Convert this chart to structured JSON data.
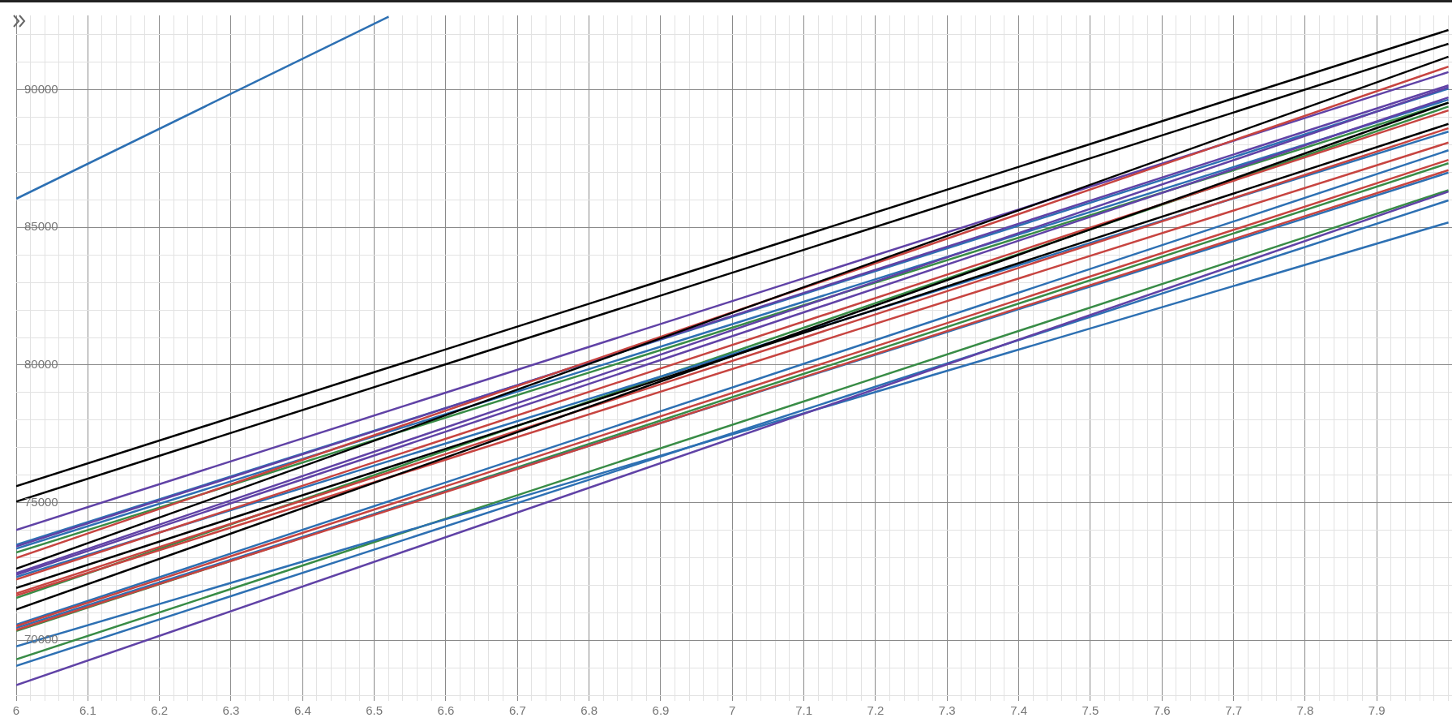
{
  "chart_data": {
    "type": "line",
    "xlim": [
      6,
      8.005
    ],
    "ylim": [
      67800,
      92700
    ],
    "grid": true,
    "legend": false,
    "xticks": [
      6,
      {
        "value": 6.02,
        "label": null
      },
      {
        "value": 6.04,
        "label": null
      },
      {
        "value": 6.06,
        "label": null
      },
      {
        "value": 6.08,
        "label": null
      },
      6.1,
      {
        "value": 6.12,
        "label": null
      },
      {
        "value": 6.14,
        "label": null
      },
      {
        "value": 6.16,
        "label": null
      },
      {
        "value": 6.18,
        "label": null
      },
      6.2,
      {
        "value": 6.22,
        "label": null
      },
      {
        "value": 6.24,
        "label": null
      },
      {
        "value": 6.26,
        "label": null
      },
      {
        "value": 6.28,
        "label": null
      },
      6.3,
      {
        "value": 6.32,
        "label": null
      },
      {
        "value": 6.34,
        "label": null
      },
      {
        "value": 6.36,
        "label": null
      },
      {
        "value": 6.38,
        "label": null
      },
      6.4,
      {
        "value": 6.42,
        "label": null
      },
      {
        "value": 6.44,
        "label": null
      },
      {
        "value": 6.46,
        "label": null
      },
      {
        "value": 6.48,
        "label": null
      },
      6.5,
      {
        "value": 6.52,
        "label": null
      },
      {
        "value": 6.54,
        "label": null
      },
      {
        "value": 6.56,
        "label": null
      },
      {
        "value": 6.58,
        "label": null
      },
      6.6,
      {
        "value": 6.62,
        "label": null
      },
      {
        "value": 6.64,
        "label": null
      },
      {
        "value": 6.66,
        "label": null
      },
      {
        "value": 6.68,
        "label": null
      },
      6.7,
      {
        "value": 6.72,
        "label": null
      },
      {
        "value": 6.74,
        "label": null
      },
      {
        "value": 6.76,
        "label": null
      },
      {
        "value": 6.78,
        "label": null
      },
      6.8,
      {
        "value": 6.82,
        "label": null
      },
      {
        "value": 6.84,
        "label": null
      },
      {
        "value": 6.86,
        "label": null
      },
      {
        "value": 6.88,
        "label": null
      },
      6.9,
      {
        "value": 6.92,
        "label": null
      },
      {
        "value": 6.94,
        "label": null
      },
      {
        "value": 6.96,
        "label": null
      },
      {
        "value": 6.98,
        "label": null
      },
      7,
      {
        "value": 7.02,
        "label": null
      },
      {
        "value": 7.04,
        "label": null
      },
      {
        "value": 7.06,
        "label": null
      },
      {
        "value": 7.08,
        "label": null
      },
      7.1,
      {
        "value": 7.12,
        "label": null
      },
      {
        "value": 7.14,
        "label": null
      },
      {
        "value": 7.16,
        "label": null
      },
      {
        "value": 7.18,
        "label": null
      },
      7.2,
      {
        "value": 7.22,
        "label": null
      },
      {
        "value": 7.24,
        "label": null
      },
      {
        "value": 7.26,
        "label": null
      },
      {
        "value": 7.28,
        "label": null
      },
      7.3,
      {
        "value": 7.32,
        "label": null
      },
      {
        "value": 7.34,
        "label": null
      },
      {
        "value": 7.36,
        "label": null
      },
      {
        "value": 7.38,
        "label": null
      },
      7.4,
      {
        "value": 7.42,
        "label": null
      },
      {
        "value": 7.44,
        "label": null
      },
      {
        "value": 7.46,
        "label": null
      },
      {
        "value": 7.48,
        "label": null
      },
      7.5,
      {
        "value": 7.52,
        "label": null
      },
      {
        "value": 7.54,
        "label": null
      },
      {
        "value": 7.56,
        "label": null
      },
      {
        "value": 7.58,
        "label": null
      },
      7.6,
      {
        "value": 7.62,
        "label": null
      },
      {
        "value": 7.64,
        "label": null
      },
      {
        "value": 7.66,
        "label": null
      },
      {
        "value": 7.68,
        "label": null
      },
      7.7,
      {
        "value": 7.72,
        "label": null
      },
      {
        "value": 7.74,
        "label": null
      },
      {
        "value": 7.76,
        "label": null
      },
      {
        "value": 7.78,
        "label": null
      },
      7.8,
      {
        "value": 7.82,
        "label": null
      },
      {
        "value": 7.84,
        "label": null
      },
      {
        "value": 7.86,
        "label": null
      },
      {
        "value": 7.88,
        "label": null
      },
      7.9,
      {
        "value": 7.92,
        "label": null
      },
      {
        "value": 7.94,
        "label": null
      },
      {
        "value": 7.96,
        "label": null
      },
      {
        "value": 7.98,
        "label": null
      },
      {
        "value": 8,
        "label": null
      }
    ],
    "yticks": [
      {
        "value": 68000,
        "label": null
      },
      {
        "value": 69000,
        "label": null
      },
      70000,
      {
        "value": 71000,
        "label": null
      },
      {
        "value": 72000,
        "label": null
      },
      {
        "value": 73000,
        "label": null
      },
      {
        "value": 74000,
        "label": null
      },
      75000,
      {
        "value": 76000,
        "label": null
      },
      {
        "value": 77000,
        "label": null
      },
      {
        "value": 78000,
        "label": null
      },
      {
        "value": 79000,
        "label": null
      },
      80000,
      {
        "value": 81000,
        "label": null
      },
      {
        "value": 82000,
        "label": null
      },
      {
        "value": 83000,
        "label": null
      },
      {
        "value": 84000,
        "label": null
      },
      85000,
      {
        "value": 86000,
        "label": null
      },
      {
        "value": 87000,
        "label": null
      },
      {
        "value": 88000,
        "label": null
      },
      {
        "value": 89000,
        "label": null
      },
      90000,
      {
        "value": 91000,
        "label": null
      },
      {
        "value": 92000,
        "label": null
      }
    ],
    "series": [
      {
        "color": "#2d70b3",
        "x": [
          6,
          6.52
        ],
        "values": [
          86040,
          92650
        ]
      },
      {
        "color": "#000000",
        "x": [
          6,
          8
        ],
        "values": [
          75600,
          92170
        ]
      },
      {
        "color": "#000000",
        "x": [
          6,
          8
        ],
        "values": [
          75040,
          91670
        ]
      },
      {
        "color": "#000000",
        "x": [
          6,
          8
        ],
        "values": [
          72600,
          91200
        ]
      },
      {
        "color": "#000000",
        "x": [
          6,
          8
        ],
        "values": [
          71900,
          88760
        ]
      },
      {
        "color": "#000000",
        "x": [
          6,
          8
        ],
        "values": [
          71120,
          89530
        ]
      },
      {
        "color": "#c74440",
        "x": [
          6,
          8
        ],
        "values": [
          72990,
          90840
        ]
      },
      {
        "color": "#c74440",
        "x": [
          6,
          8
        ],
        "values": [
          72210,
          89250
        ]
      },
      {
        "color": "#c74440",
        "x": [
          6,
          8
        ],
        "values": [
          71700,
          88600
        ]
      },
      {
        "color": "#c74440",
        "x": [
          6,
          8
        ],
        "values": [
          71630,
          88080
        ]
      },
      {
        "color": "#c74440",
        "x": [
          6,
          8
        ],
        "values": [
          70520,
          87450
        ]
      },
      {
        "color": "#c74440",
        "x": [
          6,
          8
        ],
        "values": [
          70380,
          87080
        ]
      },
      {
        "color": "#6042a6",
        "x": [
          6,
          8
        ],
        "values": [
          74010,
          90640
        ]
      },
      {
        "color": "#6042a6",
        "x": [
          6,
          8
        ],
        "values": [
          73410,
          90160
        ]
      },
      {
        "color": "#6042a6",
        "x": [
          6,
          8
        ],
        "values": [
          72440,
          90090
        ]
      },
      {
        "color": "#6042a6",
        "x": [
          6,
          8
        ],
        "values": [
          72380,
          89720
        ]
      },
      {
        "color": "#6042a6",
        "x": [
          6,
          8
        ],
        "values": [
          68370,
          86300
        ]
      },
      {
        "color": "#2d70b3",
        "x": [
          6,
          8
        ],
        "values": [
          73470,
          90040
        ]
      },
      {
        "color": "#2d70b3",
        "x": [
          6,
          8
        ],
        "values": [
          73330,
          89640
        ]
      },
      {
        "color": "#2d70b3",
        "x": [
          6,
          8
        ],
        "values": [
          72300,
          88480
        ]
      },
      {
        "color": "#2d70b3",
        "x": [
          6,
          8
        ],
        "values": [
          70570,
          87800
        ]
      },
      {
        "color": "#2d70b3",
        "x": [
          6,
          8
        ],
        "values": [
          70450,
          86990
        ]
      },
      {
        "color": "#2d70b3",
        "x": [
          6,
          8
        ],
        "values": [
          69070,
          85980
        ]
      },
      {
        "color": "#2d70b3",
        "x": [
          6,
          8
        ],
        "values": [
          69780,
          85180
        ]
      },
      {
        "color": "#388c46",
        "x": [
          6,
          8
        ],
        "values": [
          73190,
          89530
        ]
      },
      {
        "color": "#388c46",
        "x": [
          6,
          8
        ],
        "values": [
          71540,
          89390
        ]
      },
      {
        "color": "#388c46",
        "x": [
          6,
          8
        ],
        "values": [
          70340,
          87330
        ]
      },
      {
        "color": "#388c46",
        "x": [
          6,
          8
        ],
        "values": [
          69310,
          86350
        ]
      }
    ]
  }
}
